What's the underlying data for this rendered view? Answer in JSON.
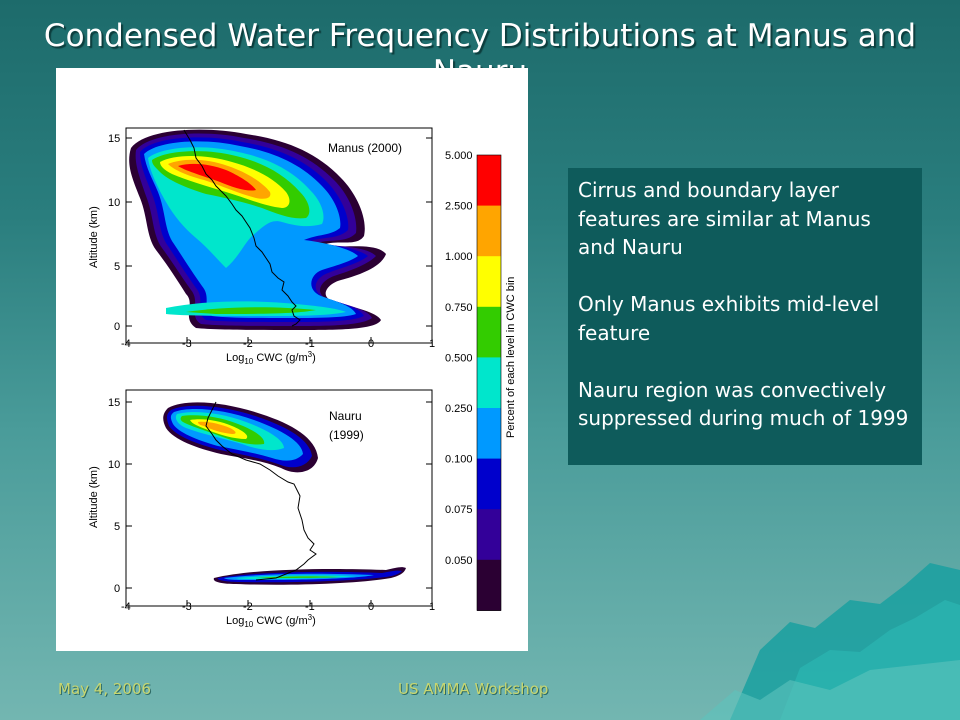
{
  "slide": {
    "title": "Condensed Water Frequency Distributions at Manus and Nauru",
    "footer_date": "May 4, 2006",
    "footer_event": "US AMMA Workshop"
  },
  "callout": {
    "paragraphs": [
      "Cirrus and boundary layer features are similar at Manus and Nauru",
      "Only Manus exhibits mid-level feature",
      "Nauru region was convectively suppressed during much of 1999"
    ]
  },
  "figure": {
    "panels": [
      {
        "label_lines": [
          "Manus (2000)"
        ],
        "xlabel_prefix": "Log",
        "xlabel_sub": "10",
        "xlabel_suffix": " CWC (g/m",
        "xlabel_sup": "3",
        "xlabel_end": ")",
        "ylabel": "Altitude (km)",
        "xticks": [
          "-4",
          "-3",
          "-2",
          "-1",
          "0",
          "1"
        ],
        "yticks": [
          "0",
          "5",
          "10",
          "15"
        ]
      },
      {
        "label_lines": [
          "Nauru",
          "(1999)"
        ],
        "xlabel_prefix": "Log",
        "xlabel_sub": "10",
        "xlabel_suffix": " CWC (g/m",
        "xlabel_sup": "3",
        "xlabel_end": ")",
        "ylabel": "Altitude (km)",
        "xticks": [
          "-4",
          "-3",
          "-2",
          "-1",
          "0",
          "1"
        ],
        "yticks": [
          "0",
          "5",
          "10",
          "15"
        ]
      }
    ],
    "colorbar": {
      "title": "Percent of each level in CWC bin",
      "levels": [
        "5.000",
        "2.500",
        "1.000",
        "0.750",
        "0.500",
        "0.250",
        "0.100",
        "0.075",
        "0.050"
      ],
      "colors": [
        "#ff0000",
        "#ffa500",
        "#ffff00",
        "#33cc00",
        "#00e6cc",
        "#0099ff",
        "#0000cc",
        "#330099",
        "#2b0033"
      ]
    }
  }
}
